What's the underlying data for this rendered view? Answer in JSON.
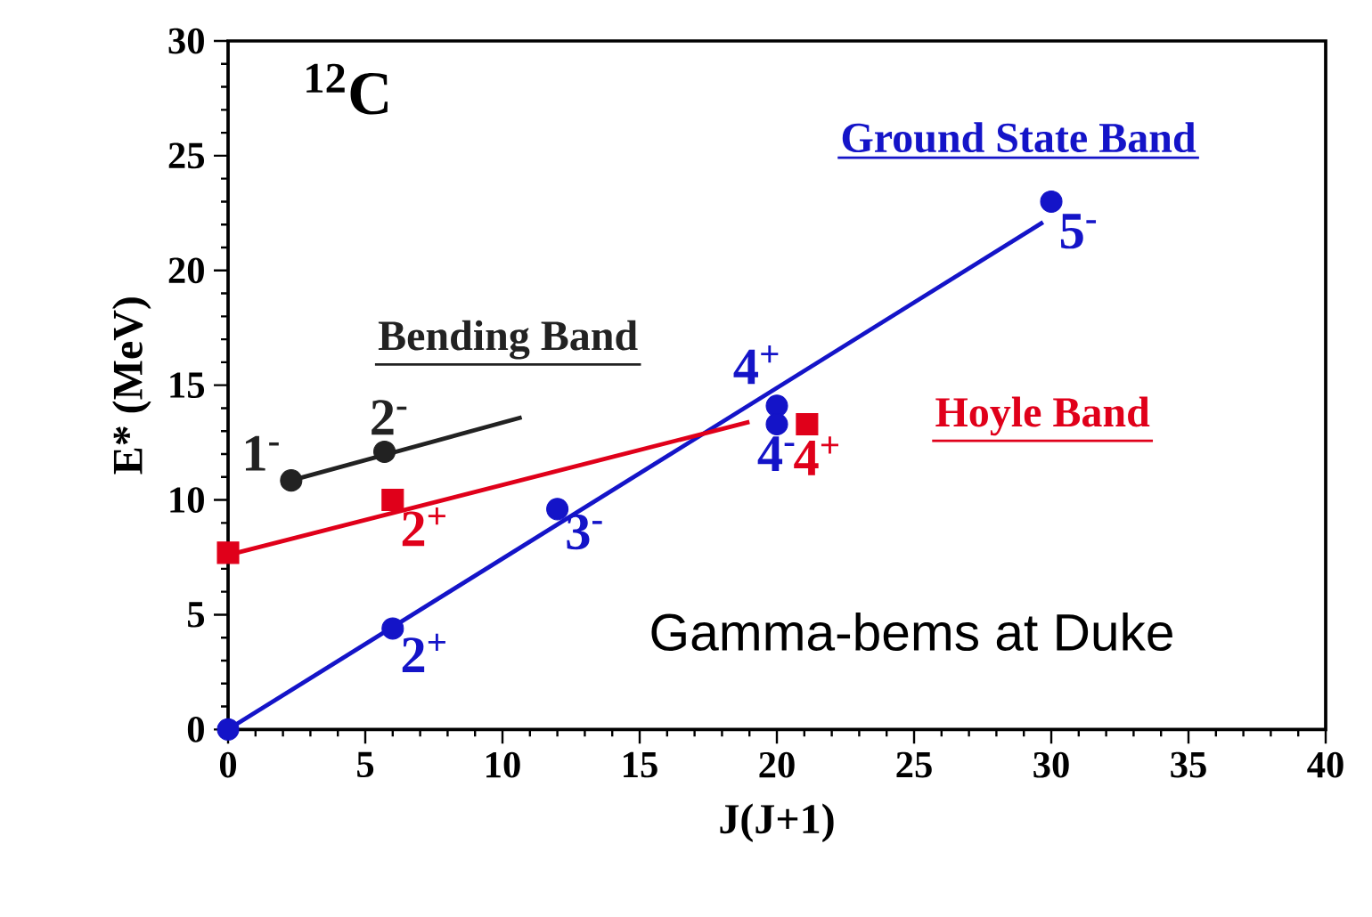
{
  "chart_data": {
    "type": "scatter",
    "xlabel": "J(J+1)",
    "ylabel": "E* (MeV)",
    "xlim": [
      0,
      40
    ],
    "ylim": [
      0,
      30
    ],
    "xticks": [
      0,
      5,
      10,
      15,
      20,
      25,
      30,
      35,
      40
    ],
    "yticks": [
      0,
      5,
      10,
      15,
      20,
      25,
      30
    ],
    "grid": false,
    "legend": false,
    "series": [
      {
        "name": "Ground State  Band",
        "color": "#1414c8",
        "x": [
          0,
          6,
          12,
          20,
          20,
          30
        ],
        "values": [
          0,
          4.4,
          9.6,
          14.1,
          13.3,
          23.0
        ],
        "marker": "circle"
      },
      {
        "type": "line",
        "color": "#1414c8",
        "x": [
          0,
          29.7
        ],
        "values": [
          0,
          22.1
        ],
        "marker": "none"
      },
      {
        "name": "Hoyle Band",
        "color": "#e0001a",
        "x": [
          0,
          6,
          21.1
        ],
        "values": [
          7.7,
          10.0,
          13.3
        ],
        "marker": "square"
      },
      {
        "type": "line",
        "color": "#e0001a",
        "x": [
          0,
          19
        ],
        "values": [
          7.6,
          13.4
        ],
        "marker": "none"
      },
      {
        "name": "Bending Band",
        "color": "#222222",
        "x": [
          2.3,
          5.7
        ],
        "values": [
          10.85,
          12.1
        ],
        "marker": "circle"
      },
      {
        "type": "line",
        "color": "#222222",
        "x": [
          2.3,
          10.7
        ],
        "values": [
          10.85,
          13.6
        ],
        "marker": "none"
      }
    ],
    "annotations": [
      "$^{12}$C",
      "Gamma-bems at Duke",
      {
        "text": "2$^{+}$",
        "x": 6,
        "y": 4.4
      },
      {
        "text": "3$^{-}$",
        "x": 12,
        "y": 9.6
      },
      {
        "text": "4$^{+}$",
        "x": 20,
        "y": 14.1
      },
      {
        "text": "4$^{-}$",
        "x": 20,
        "y": 13.3
      },
      {
        "text": "5$^{-}$",
        "x": 30,
        "y": 23.0
      },
      {
        "text": "2$^{+}$",
        "x": 6,
        "y": 10.0
      },
      {
        "text": "4$^{+}$",
        "x": 21.1,
        "y": 13.3
      },
      {
        "text": "1$^{-}$",
        "x": 2.3,
        "y": 10.85
      },
      {
        "text": "2$^{-}$",
        "x": 5.7,
        "y": 12.1
      }
    ]
  }
}
